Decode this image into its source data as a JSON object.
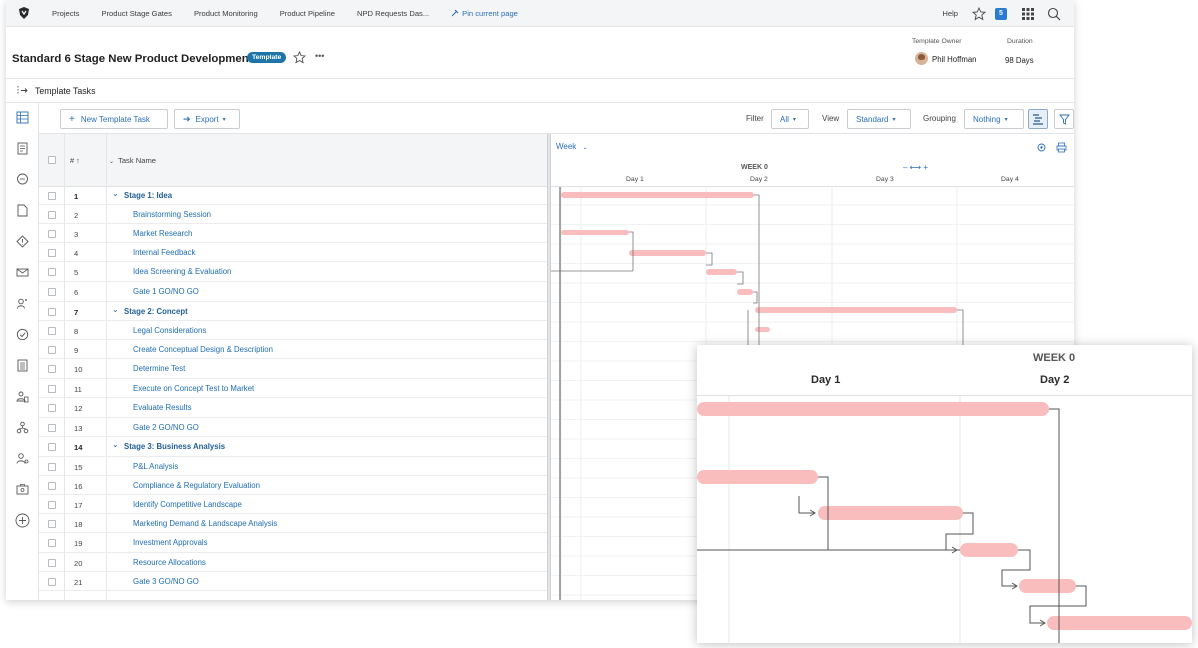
{
  "nav": {
    "items": [
      "Projects",
      "Product Stage Gates",
      "Product Monitoring",
      "Product Pipeline",
      "NPD Requests Das..."
    ],
    "pin_label": "Pin current page",
    "help_label": "Help",
    "notification_count": "5"
  },
  "header": {
    "title": "Standard 6 Stage New Product Development",
    "badge": "Template",
    "owner_label": "Template Owner",
    "owner_name": "Phil Hoffman",
    "duration_label": "Duration",
    "duration_value": "98 Days"
  },
  "subheader": {
    "title": "Template Tasks"
  },
  "toolbar": {
    "new_task_label": "New Template Task",
    "export_label": "Export",
    "filter_label": "Filter",
    "filter_value": "All",
    "view_label": "View",
    "view_value": "Standard",
    "grouping_label": "Grouping",
    "grouping_value": "Nothing"
  },
  "grid": {
    "col_num": "# ↑",
    "col_name": "Task Name",
    "rows": [
      {
        "num": "1",
        "name": "Stage 1: Idea",
        "stage": true
      },
      {
        "num": "2",
        "name": "Brainstorming Session",
        "stage": false
      },
      {
        "num": "3",
        "name": "Market Research",
        "stage": false
      },
      {
        "num": "4",
        "name": "Internal Feedback",
        "stage": false
      },
      {
        "num": "5",
        "name": "Idea Screening & Evaluation",
        "stage": false
      },
      {
        "num": "6",
        "name": "Gate 1 GO/NO GO",
        "stage": false
      },
      {
        "num": "7",
        "name": "Stage 2: Concept",
        "stage": true
      },
      {
        "num": "8",
        "name": "Legal Considerations",
        "stage": false
      },
      {
        "num": "9",
        "name": "Create Conceptual Design & Description",
        "stage": false
      },
      {
        "num": "10",
        "name": "Determine Test",
        "stage": false
      },
      {
        "num": "11",
        "name": "Execute on Concept Test to Market",
        "stage": false
      },
      {
        "num": "12",
        "name": "Evaluate Results",
        "stage": false
      },
      {
        "num": "13",
        "name": "Gate 2 GO/NO GO",
        "stage": false
      },
      {
        "num": "14",
        "name": "Stage 3: Business Analysis",
        "stage": true
      },
      {
        "num": "15",
        "name": "P&L Analysis",
        "stage": false
      },
      {
        "num": "16",
        "name": "Compliance & Regulatory Evaluation",
        "stage": false
      },
      {
        "num": "17",
        "name": "Identify Competitive Landscape",
        "stage": false
      },
      {
        "num": "18",
        "name": "Marketing Demand & Landscape Analysis",
        "stage": false
      },
      {
        "num": "19",
        "name": "Investment Approvals",
        "stage": false
      },
      {
        "num": "20",
        "name": "Resource Allocations",
        "stage": false
      },
      {
        "num": "21",
        "name": "Gate 3 GO/NO GO",
        "stage": false
      }
    ]
  },
  "gantt": {
    "scale_label": "Week",
    "week_label": "WEEK 0",
    "days": [
      "Day 1",
      "Day 2",
      "Day 3",
      "Day 4"
    ],
    "bar_color": "#f9bdbd"
  },
  "zoom": {
    "week_label": "WEEK 0",
    "days": [
      "Day 1",
      "Day 2"
    ]
  },
  "colors": {
    "accent": "#2b6fb7",
    "badge": "#1c74a8",
    "bar": "#f9bdbd"
  }
}
